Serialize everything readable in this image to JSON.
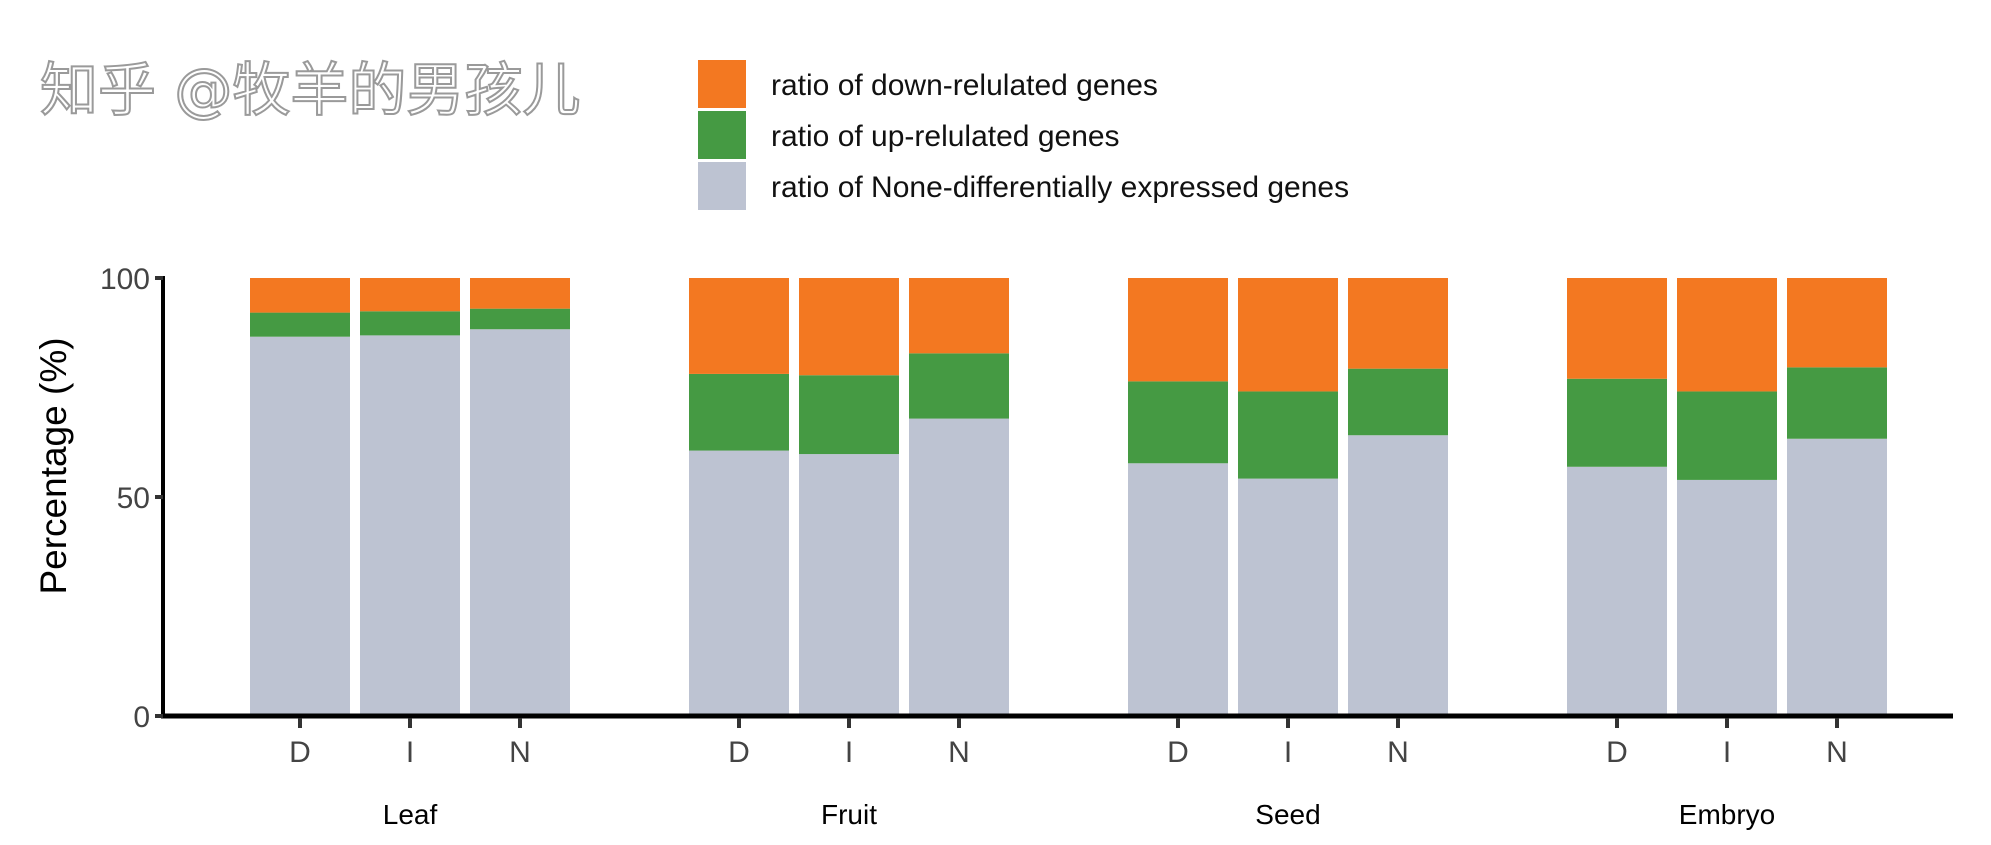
{
  "chart_data": {
    "type": "bar",
    "stacked": true,
    "title": "",
    "xlabel": "",
    "ylabel": "Percentage (%)",
    "ylim": [
      0,
      100
    ],
    "yticks": [
      "0",
      "50",
      "100"
    ],
    "grid": false,
    "legend_position": "top-center",
    "groups": [
      "Leaf",
      "Fruit",
      "Seed",
      "Embryo"
    ],
    "categories": [
      "D",
      "I",
      "N"
    ],
    "series": [
      {
        "name": "ratio of None-differentially expressed genes",
        "color": "#bdc3d2",
        "values": [
          [
            86.6,
            86.9,
            88.3
          ],
          [
            60.6,
            59.8,
            67.9
          ],
          [
            57.7,
            54.2,
            64.1
          ],
          [
            56.9,
            53.9,
            63.3
          ]
        ]
      },
      {
        "name": "ratio of up-relulated genes",
        "color": "#459a43",
        "values": [
          [
            5.5,
            5.5,
            4.7
          ],
          [
            17.5,
            18.0,
            14.9
          ],
          [
            18.7,
            19.9,
            15.2
          ],
          [
            20.1,
            20.2,
            16.3
          ]
        ]
      },
      {
        "name": "ratio of down-relulated genes",
        "color": "#f37821",
        "values": [
          [
            7.9,
            7.6,
            7.0
          ],
          [
            21.9,
            22.2,
            17.2
          ],
          [
            23.6,
            25.9,
            20.7
          ],
          [
            23.0,
            25.9,
            20.4
          ]
        ]
      }
    ],
    "legend_order": [
      2,
      1,
      0
    ]
  },
  "watermark": "知乎 @牧羊的男孩儿"
}
